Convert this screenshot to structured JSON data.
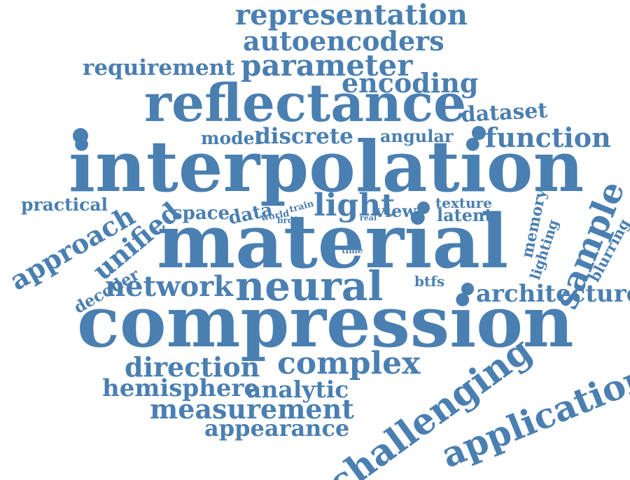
{
  "colors": {
    "word": "#4a7fb1",
    "background": "#ffffff"
  },
  "words": [
    {
      "text": "representation"
    },
    {
      "text": "autoencoders"
    },
    {
      "text": "parameter"
    },
    {
      "text": "requirement"
    },
    {
      "text": "encoding"
    },
    {
      "text": "reflectance"
    },
    {
      "text": "dataset"
    },
    {
      "text": "model"
    },
    {
      "text": "discrete"
    },
    {
      "text": "angular"
    },
    {
      "text": "function"
    },
    {
      "text": "interpolation"
    },
    {
      "text": "sample"
    },
    {
      "text": "practical"
    },
    {
      "text": "approach"
    },
    {
      "text": "unified"
    },
    {
      "text": "space"
    },
    {
      "text": "data"
    },
    {
      "text": "train"
    },
    {
      "text": "world"
    },
    {
      "text": "brdf"
    },
    {
      "text": "light"
    },
    {
      "text": "real"
    },
    {
      "text": "view"
    },
    {
      "text": "texture"
    },
    {
      "text": "latent"
    },
    {
      "text": "memory"
    },
    {
      "text": "lighting"
    },
    {
      "text": "blurring"
    },
    {
      "text": "material"
    },
    {
      "text": "time"
    },
    {
      "text": "decoder"
    },
    {
      "text": "network"
    },
    {
      "text": "neural"
    },
    {
      "text": "btfs"
    },
    {
      "text": "architecture"
    },
    {
      "text": "compression"
    },
    {
      "text": "direction"
    },
    {
      "text": "complex"
    },
    {
      "text": "hemisphere"
    },
    {
      "text": "analytic"
    },
    {
      "text": "measurement"
    },
    {
      "text": "appearance"
    },
    {
      "text": "challenging"
    },
    {
      "text": "application"
    }
  ]
}
